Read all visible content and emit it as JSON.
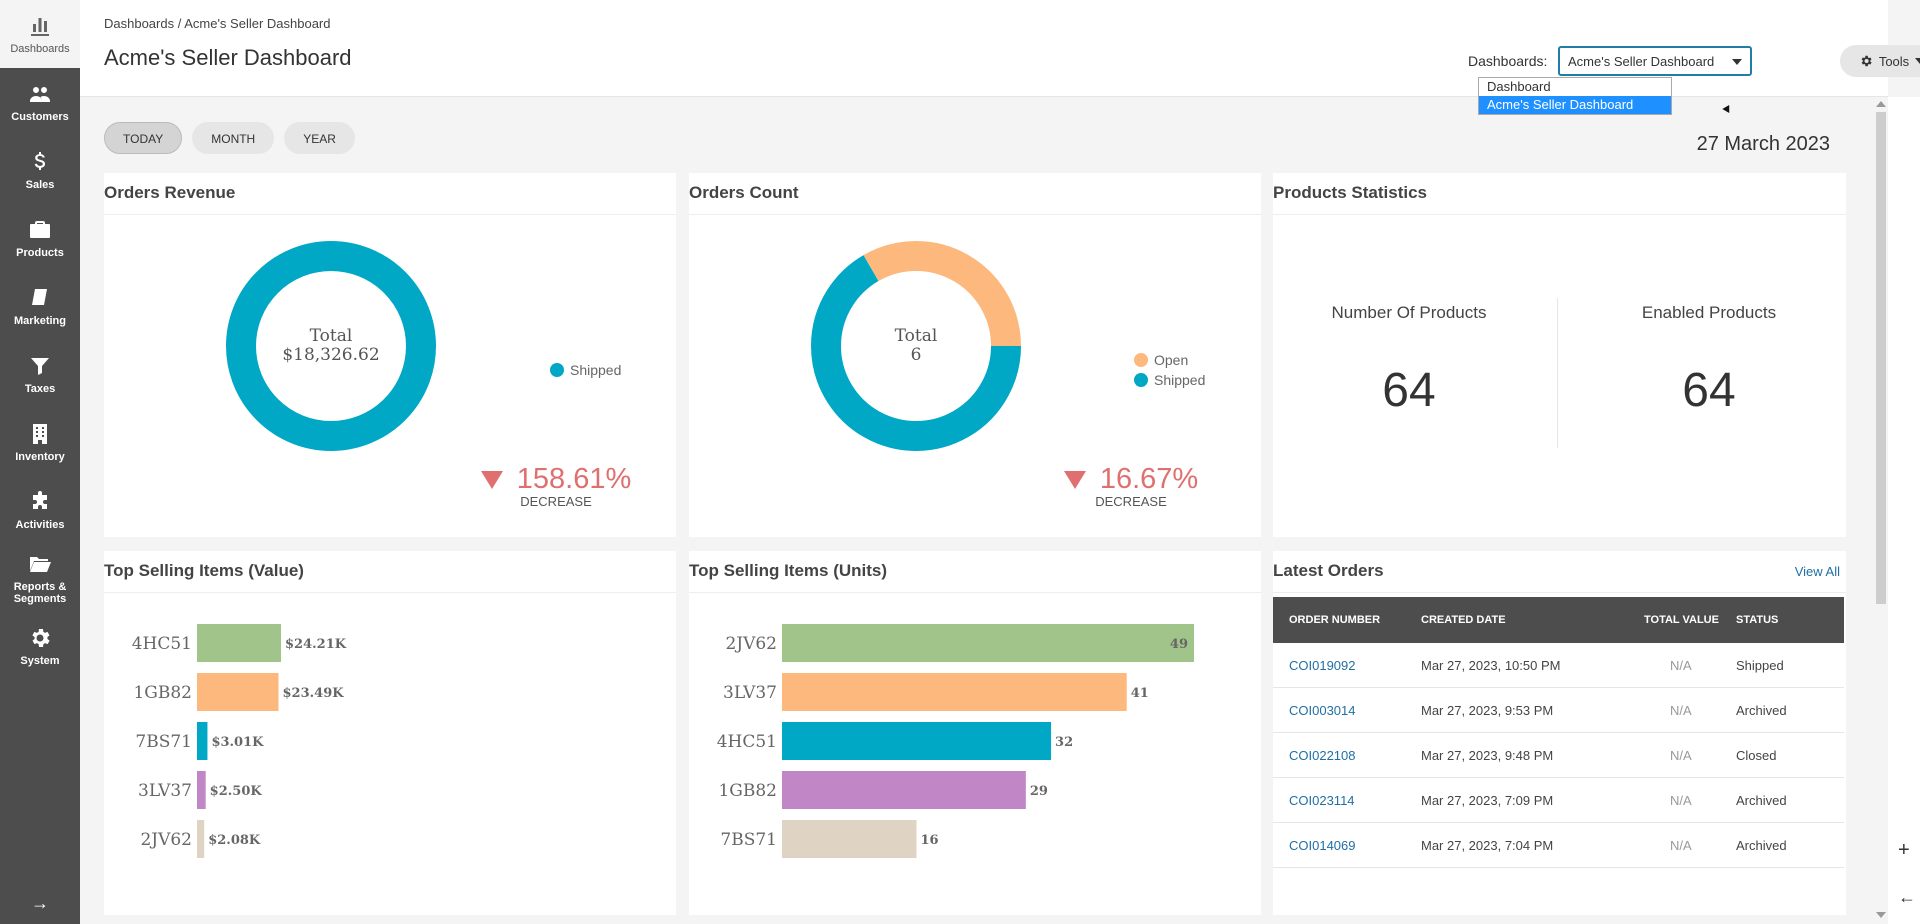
{
  "sidebar": {
    "items": [
      {
        "label": "Dashboards",
        "icon": "bar-chart-icon",
        "active": true
      },
      {
        "label": "Customers",
        "icon": "users-icon"
      },
      {
        "label": "Sales",
        "icon": "dollar-icon"
      },
      {
        "label": "Products",
        "icon": "briefcase-icon"
      },
      {
        "label": "Marketing",
        "icon": "book-icon"
      },
      {
        "label": "Taxes",
        "icon": "filter-icon"
      },
      {
        "label": "Inventory",
        "icon": "building-icon"
      },
      {
        "label": "Activities",
        "icon": "puzzle-icon"
      },
      {
        "label": "Reports & Segments",
        "icon": "folder-icon"
      },
      {
        "label": "System",
        "icon": "gear-icon"
      }
    ],
    "expand": "→"
  },
  "header": {
    "breadcrumb": "Dashboards / Acme's Seller Dashboard",
    "title": "Acme's Seller Dashboard",
    "dashboards_label": "Dashboards:",
    "dashboards_value": "Acme's Seller Dashboard",
    "dropdown_options": [
      "Dashboard",
      "Acme's Seller Dashboard"
    ],
    "dropdown_selected": "Acme's Seller Dashboard",
    "tools_label": "Tools"
  },
  "periods": [
    "TODAY",
    "MONTH",
    "YEAR"
  ],
  "active_period": "TODAY",
  "date": "27 March 2023",
  "colors": {
    "teal": "#00a8c6",
    "orange": "#fdb97d",
    "green": "#a1c48a",
    "purple": "#c086c6",
    "beige": "#dfd4c4",
    "red": "#e07070"
  },
  "revenue": {
    "title": "Orders Revenue",
    "center_label": "Total",
    "center_value": "$18,326.62",
    "legend": [
      {
        "name": "Shipped",
        "color": "#00a8c6"
      }
    ],
    "change": "158.61%",
    "change_label": "DECREASE"
  },
  "count": {
    "title": "Orders Count",
    "center_label": "Total",
    "center_value": "6",
    "legend": [
      {
        "name": "Open",
        "color": "#fdb97d"
      },
      {
        "name": "Shipped",
        "color": "#00a8c6"
      }
    ],
    "change": "16.67%",
    "change_label": "DECREASE"
  },
  "products": {
    "title": "Products Statistics",
    "number_label": "Number Of Products",
    "number_value": "64",
    "enabled_label": "Enabled Products",
    "enabled_value": "64"
  },
  "top_value": {
    "title": "Top Selling Items (Value)"
  },
  "top_units": {
    "title": "Top Selling Items (Units)"
  },
  "latest": {
    "title": "Latest Orders",
    "view_all": "View All",
    "columns": [
      "ORDER NUMBER",
      "CREATED DATE",
      "TOTAL VALUE",
      "STATUS"
    ],
    "rows": [
      [
        "COI019092",
        "Mar 27, 2023, 10:50 PM",
        "N/A",
        "Shipped"
      ],
      [
        "COI003014",
        "Mar 27, 2023, 9:53 PM",
        "N/A",
        "Archived"
      ],
      [
        "COI022108",
        "Mar 27, 2023, 9:48 PM",
        "N/A",
        "Closed"
      ],
      [
        "COI023114",
        "Mar 27, 2023, 7:09 PM",
        "N/A",
        "Archived"
      ],
      [
        "COI014069",
        "Mar 27, 2023, 7:04 PM",
        "N/A",
        "Archived"
      ]
    ]
  },
  "chart_data": [
    {
      "type": "pie",
      "title": "Orders Revenue",
      "categories": [
        "Shipped"
      ],
      "values": [
        18326.62
      ]
    },
    {
      "type": "pie",
      "title": "Orders Count",
      "categories": [
        "Open",
        "Shipped"
      ],
      "values": [
        2,
        4
      ]
    },
    {
      "type": "bar",
      "title": "Top Selling Items (Value)",
      "categories": [
        "4HC51",
        "1GB82",
        "7BS71",
        "3LV37",
        "2JV62"
      ],
      "values": [
        24.21,
        23.49,
        3.01,
        2.5,
        2.08
      ],
      "value_labels": [
        "$24.21K",
        "$23.49K",
        "$3.01K",
        "$2.50K",
        "$2.08K"
      ],
      "colors": [
        "#a1c48a",
        "#fdb97d",
        "#00a8c6",
        "#c086c6",
        "#dfd4c4"
      ]
    },
    {
      "type": "bar",
      "title": "Top Selling Items (Units)",
      "categories": [
        "2JV62",
        "3LV37",
        "4HC51",
        "1GB82",
        "7BS71"
      ],
      "values": [
        49,
        41,
        32,
        29,
        16
      ],
      "value_labels": [
        "49",
        "41",
        "32",
        "29",
        "16"
      ],
      "colors": [
        "#a1c48a",
        "#fdb97d",
        "#00a8c6",
        "#c086c6",
        "#dfd4c4"
      ]
    }
  ]
}
